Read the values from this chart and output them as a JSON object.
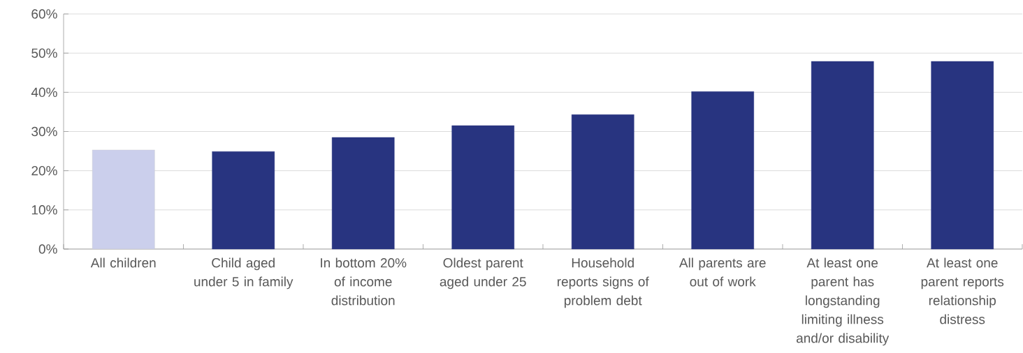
{
  "chart_data": {
    "type": "bar",
    "categories": [
      "All children",
      "Child aged under 5 in family",
      "In bottom 20% of income distribution",
      "Oldest parent aged under 25",
      "Household reports signs of problem debt",
      "All parents are out of work",
      "At least one parent has longstanding limiting illness and/or disability",
      "At least one parent reports relationship distress"
    ],
    "values": [
      25.3,
      24.9,
      28.5,
      31.5,
      34.3,
      40.2,
      47.9,
      47.9
    ],
    "colors": [
      "#cbcfec",
      "#283480",
      "#283480",
      "#283480",
      "#283480",
      "#283480",
      "#283480",
      "#283480"
    ],
    "ylim": [
      0,
      60
    ],
    "yticks": [
      {
        "value": 0,
        "label": "0%"
      },
      {
        "value": 10,
        "label": "10%"
      },
      {
        "value": 20,
        "label": "20%"
      },
      {
        "value": 30,
        "label": "30%"
      },
      {
        "value": 40,
        "label": "40%"
      },
      {
        "value": 50,
        "label": "50%"
      },
      {
        "value": 60,
        "label": "60%"
      }
    ],
    "grid": "y"
  }
}
